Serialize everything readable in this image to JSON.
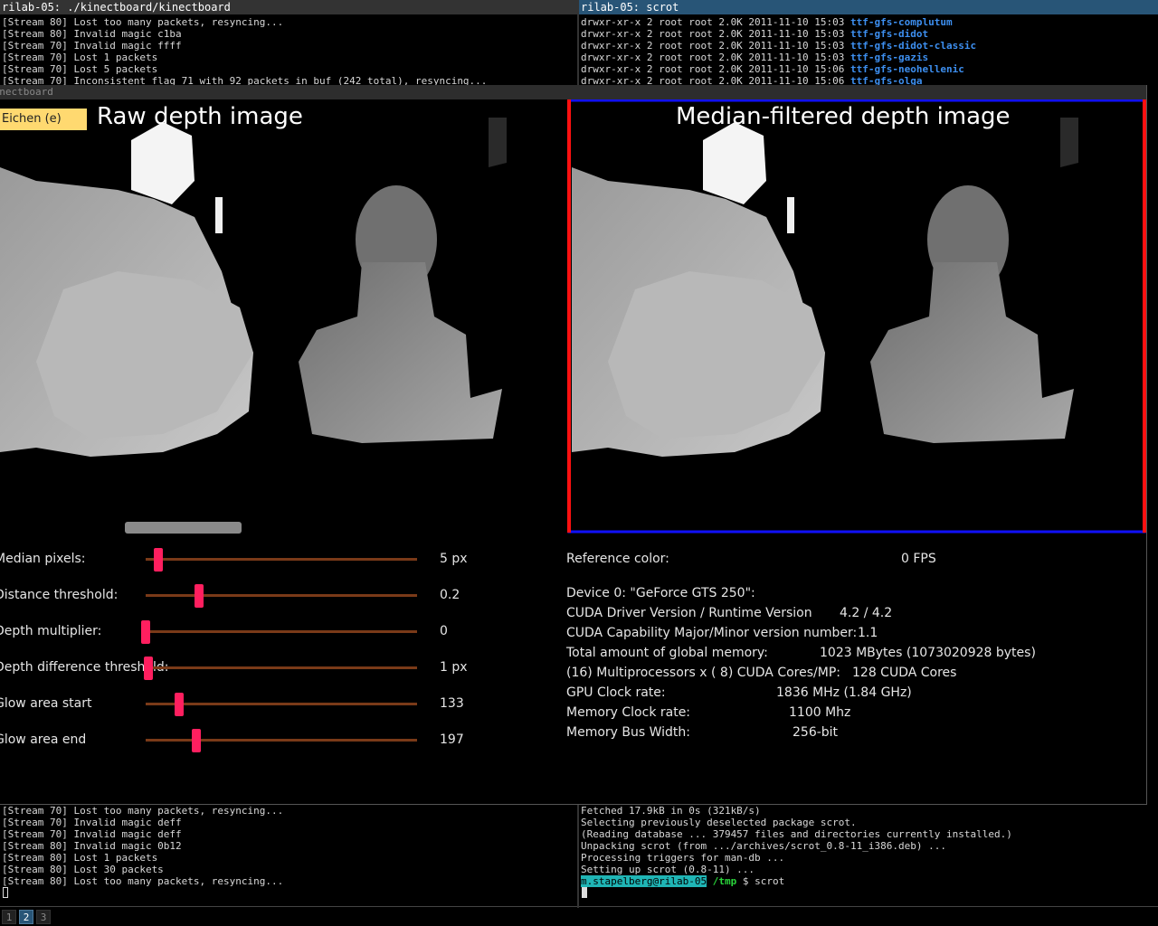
{
  "terminals": {
    "top_left": {
      "title": "rilab-05: ./kinectboard/kinectboard",
      "lines": [
        "[Stream 80] Lost too many packets, resyncing...",
        "[Stream 80] Invalid magic c1ba",
        "[Stream 70] Invalid magic ffff",
        "[Stream 70] Lost 1 packets",
        "[Stream 70] Lost 5 packets",
        "[Stream 70] Inconsistent flag 71 with 92 packets in buf (242 total), resyncing..."
      ]
    },
    "top_right": {
      "title": "rilab-05: scrot",
      "rows": [
        [
          "drwxr-xr-x 2 root root 2.0K 2011-11-10 15:03 ",
          "ttf-gfs-complutum"
        ],
        [
          "drwxr-xr-x 2 root root 2.0K 2011-11-10 15:03 ",
          "ttf-gfs-didot"
        ],
        [
          "drwxr-xr-x 2 root root 2.0K 2011-11-10 15:03 ",
          "ttf-gfs-didot-classic"
        ],
        [
          "drwxr-xr-x 2 root root 2.0K 2011-11-10 15:03 ",
          "ttf-gfs-gazis"
        ],
        [
          "drwxr-xr-x 2 root root 2.0K 2011-11-10 15:06 ",
          "ttf-gfs-neohellenic"
        ],
        [
          "drwxr-xr-x 2 root root 2.0K 2011-11-10 15:06 ",
          "ttf-gfs-olga"
        ]
      ]
    },
    "bottom_left": {
      "lines": [
        "[Stream 70] Lost too many packets, resyncing...",
        "[Stream 70] Invalid magic deff",
        "[Stream 70] Invalid magic deff",
        "[Stream 80] Invalid magic 0b12",
        "[Stream 80] Lost 1 packets",
        "[Stream 80] Lost 30 packets",
        "[Stream 80] Lost too many packets, resyncing..."
      ]
    },
    "bottom_right": {
      "lines": [
        "Fetched 17.9kB in 0s (321kB/s)",
        "Selecting previously deselected package scrot.",
        "(Reading database ... 379457 files and directories currently installed.)",
        "Unpacking scrot (from .../archives/scrot_0.8-11_i386.deb) ...",
        "Processing triggers for man-db ...",
        "Setting up scrot (0.8-11) ..."
      ],
      "prompt": {
        "user": "m.stapelberg@rilab-05",
        "dir": "/tmp",
        "command": "$ scrot"
      }
    }
  },
  "app": {
    "window_title": "kinectboard",
    "button": "Eichen (e)",
    "raw_heading": "Raw depth image",
    "filtered_heading": "Median-filtered depth image",
    "sliders": [
      {
        "label": "Median pixels:",
        "value": "5 px"
      },
      {
        "label": "Distance threshold:",
        "value": "0.2"
      },
      {
        "label": "Depth multiplier:",
        "value": "0"
      },
      {
        "label": "Depth difference threshold:",
        "value": "1 px"
      },
      {
        "label": "Glow area start",
        "value": "133"
      },
      {
        "label": "Glow area end",
        "value": "197"
      }
    ],
    "reference_color": "Reference color:",
    "fps": "0 FPS",
    "device": "Device 0: \"GeForce GTS 250\":",
    "device_info": [
      [
        "CUDA Driver Version / Runtime Version",
        "4.2 / 4.2"
      ],
      [
        "CUDA Capability Major/Minor version number:",
        "1.1"
      ],
      [
        "Total amount of global memory:",
        "1023 MBytes (1073020928 bytes)"
      ],
      [
        "(16) Multiprocessors x ( 8) CUDA Cores/MP:",
        "128 CUDA Cores"
      ],
      [
        "GPU Clock rate:",
        "1836 MHz (1.84 GHz)"
      ],
      [
        "Memory Clock rate:",
        "1100 Mhz"
      ],
      [
        "Memory Bus Width:",
        "256-bit"
      ]
    ]
  },
  "workspaces": [
    "1",
    "2",
    "3"
  ]
}
